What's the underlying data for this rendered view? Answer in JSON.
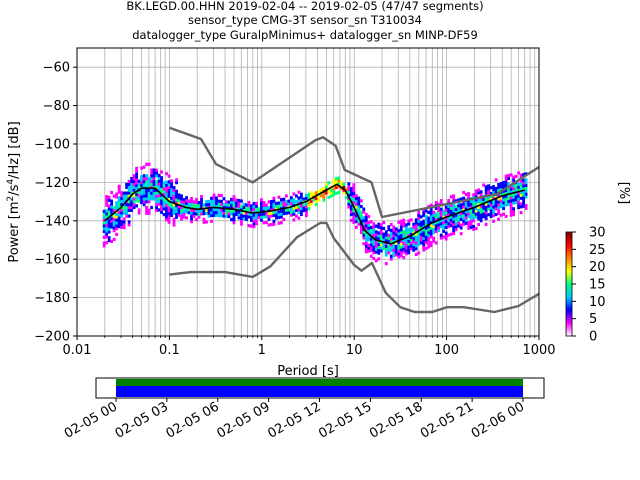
{
  "header": {
    "title_line1": "BK.LEGD.00.HHN   2019-02-04 -- 2019-02-05  (47/47 segments)",
    "title_line2": "sensor_type CMG-3T sensor_sn T310034",
    "title_line3": "datalogger_type GuralpMinimus+ datalogger_sn MINP-DF59"
  },
  "chart_data": [
    {
      "type": "heatmap",
      "subtype": "probabilistic power spectral density",
      "xlabel": "Period [s]",
      "ylabel": "Power [m²/s⁴/Hz] [dB]",
      "x_scale": "log",
      "xlim": [
        0.01,
        1000
      ],
      "ylim": [
        -200,
        -50
      ],
      "x_ticks": [
        0.01,
        0.1,
        1,
        10,
        100,
        1000
      ],
      "x_tick_labels": [
        "0.01",
        "0.1",
        "1",
        "10",
        "100",
        "1000"
      ],
      "y_ticks": [
        -200,
        -180,
        -160,
        -140,
        -120,
        -100,
        -80,
        -60
      ],
      "y_tick_labels": [
        "−200",
        "−180",
        "−160",
        "−140",
        "−120",
        "−100",
        "−80",
        "−60"
      ],
      "grid": true,
      "colorbar": {
        "label": "[%]",
        "range": [
          0,
          30
        ],
        "ticks": [
          0,
          5,
          10,
          15,
          20,
          25,
          30
        ],
        "tick_labels": [
          "0",
          "5",
          "10",
          "15",
          "20",
          "25",
          "30"
        ],
        "colormap": [
          "#ffffff",
          "#ff00ff",
          "#0000ff",
          "#00c8ff",
          "#00ff80",
          "#ffff00",
          "#ff8000",
          "#ff0000",
          "#800000"
        ]
      },
      "series": [
        {
          "role": "noise-model-high",
          "color": "#666666",
          "x": [
            0.1,
            0.22,
            0.32,
            0.8,
            3.8,
            4.6,
            6.3,
            7.9,
            15.4,
            20,
            354.8,
            1000
          ],
          "y": [
            -91.5,
            -97.4,
            -110.5,
            -120,
            -98,
            -96.5,
            -101,
            -113.5,
            -120,
            -138,
            -126,
            -112
          ]
        },
        {
          "role": "noise-model-low",
          "color": "#666666",
          "x": [
            0.1,
            0.17,
            0.4,
            0.8,
            1.24,
            2.4,
            4.3,
            5.0,
            6.0,
            10,
            12,
            15.6,
            21.9,
            31.6,
            45,
            70,
            101,
            154,
            328,
            600,
            1000
          ],
          "y": [
            -168,
            -166.7,
            -166.7,
            -169.2,
            -163.7,
            -148.6,
            -141.1,
            -141.1,
            -149,
            -163,
            -166,
            -162,
            -177.5,
            -185,
            -187.5,
            -187.5,
            -185,
            -185,
            -187.5,
            -184.4,
            -178
          ]
        },
        {
          "role": "mean-psd",
          "color": "#000000",
          "x": [
            0.02,
            0.03,
            0.04,
            0.05,
            0.07,
            0.1,
            0.15,
            0.2,
            0.3,
            0.5,
            0.8,
            1.2,
            2,
            3,
            5,
            6.5,
            8,
            10,
            13,
            17,
            25,
            40,
            70,
            100,
            200,
            400,
            700
          ],
          "y": [
            -140,
            -133,
            -126,
            -123,
            -123,
            -130,
            -133,
            -134,
            -133,
            -134,
            -136,
            -135,
            -133,
            -130,
            -124,
            -121,
            -124,
            -133,
            -145,
            -150,
            -152,
            -148,
            -141,
            -138,
            -133,
            -127,
            -124
          ]
        }
      ]
    },
    {
      "type": "timeline",
      "x_tick_labels": [
        "02-05 00",
        "02-05 03",
        "02-05 06",
        "02-05 09",
        "02-05 12",
        "02-05 15",
        "02-05 18",
        "02-05 21",
        "02-06 00"
      ],
      "bars": [
        {
          "role": "data-coverage",
          "color": "#0000ff",
          "start": "02-05 00",
          "end": "02-06 00"
        },
        {
          "role": "processed",
          "color": "#008000",
          "start": "02-05 00",
          "end": "02-06 00"
        }
      ]
    }
  ]
}
